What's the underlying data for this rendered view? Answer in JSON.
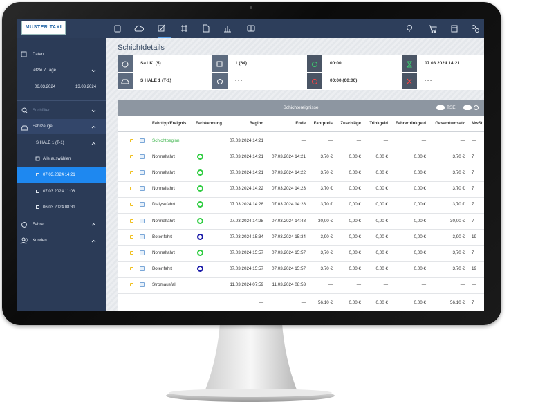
{
  "nav": {
    "logo": "MUSTER TAXI"
  },
  "sidebar": {
    "daten": "Daten",
    "range": "letzte 7 Tage",
    "from": "06.03.2024",
    "to": "13.03.2024",
    "search": "Suchfilter",
    "fahrzeuge": "Fahrzeuge",
    "vehicle": "S HALE 1 (T-1)",
    "select_all": "Alle auswählen",
    "shifts": [
      "07.03.2024 14:21",
      "07.03.2024 11:06",
      "06.03.2024 08:31"
    ],
    "fahrer": "Fahrer",
    "kunden": "Kunden"
  },
  "page": {
    "title": "Schichtdetails"
  },
  "info": {
    "rows": [
      [
        "Sa1 K. (5)",
        "1 (64)",
        "00:00",
        "07.03.2024 14:21"
      ],
      [
        "S HALE 1 (T-1)",
        "- - -",
        "00:00 (00:00)",
        "- - -"
      ]
    ]
  },
  "table": {
    "title": "Schichtereignisse",
    "toggle": "TSE",
    "columns": [
      "Fahrttyp/Ereignis",
      "Farbkennung",
      "Beginn",
      "Ende",
      "Fahrpreis",
      "Zuschläge",
      "Trinkgeld",
      "Fahrertrinkgeld",
      "Gesamtumsatz",
      "MwSt"
    ],
    "rows": [
      {
        "text_color": "#3cb44b",
        "cells": [
          "Schichtbeginn",
          "07.03.2024 14:21",
          "—",
          "—",
          "—",
          "—",
          "—",
          "—",
          "—"
        ]
      },
      {
        "color": "#2ecc40",
        "cells": [
          "Normalfahrt",
          "07.03.2024 14:21",
          "07.03.2024 14:21",
          "3,70 €",
          "0,00 €",
          "0,00 €",
          "0,00 €",
          "3,70 €",
          "7"
        ]
      },
      {
        "color": "#2ecc40",
        "cells": [
          "Normalfahrt",
          "07.03.2024 14:21",
          "07.03.2024 14:22",
          "3,70 €",
          "0,00 €",
          "0,00 €",
          "0,00 €",
          "3,70 €",
          "7"
        ]
      },
      {
        "color": "#2ecc40",
        "cells": [
          "Normalfahrt",
          "07.03.2024 14:22",
          "07.03.2024 14:23",
          "3,70 €",
          "0,00 €",
          "0,00 €",
          "0,00 €",
          "3,70 €",
          "7"
        ]
      },
      {
        "color": "#2ecc40",
        "cells": [
          "Dialysefahrt",
          "07.03.2024 14:28",
          "07.03.2024 14:28",
          "3,70 €",
          "0,00 €",
          "0,00 €",
          "0,00 €",
          "3,70 €",
          "7"
        ]
      },
      {
        "color": "#2ecc40",
        "cells": [
          "Normalfahrt",
          "07.03.2024 14:28",
          "07.03.2024 14:48",
          "30,00 €",
          "0,00 €",
          "0,00 €",
          "0,00 €",
          "30,00 €",
          "7"
        ]
      },
      {
        "color": "#1a1aa8",
        "cells": [
          "Botenfahrt",
          "07.03.2024 15:34",
          "07.03.2024 15:34",
          "3,90 €",
          "0,00 €",
          "0,00 €",
          "0,00 €",
          "3,90 €",
          "19"
        ]
      },
      {
        "color": "#2ecc40",
        "cells": [
          "Normalfahrt",
          "07.03.2024 15:57",
          "07.03.2024 15:57",
          "3,70 €",
          "0,00 €",
          "0,00 €",
          "0,00 €",
          "3,70 €",
          "7"
        ]
      },
      {
        "color": "#1a1aa8",
        "cells": [
          "Botenfahrt",
          "07.03.2024 15:57",
          "07.03.2024 15:57",
          "3,70 €",
          "0,00 €",
          "0,00 €",
          "0,00 €",
          "3,70 €",
          "19"
        ]
      },
      {
        "cells": [
          "Stromausfall",
          "11.03.2024 07:59",
          "11.03.2024 08:53",
          "—",
          "—",
          "—",
          "—",
          "—",
          "—"
        ]
      }
    ],
    "totals": [
      "—",
      "—",
      "56,10 €",
      "0,00 €",
      "0,00 €",
      "0,00 €",
      "56,10 €",
      "7"
    ]
  }
}
